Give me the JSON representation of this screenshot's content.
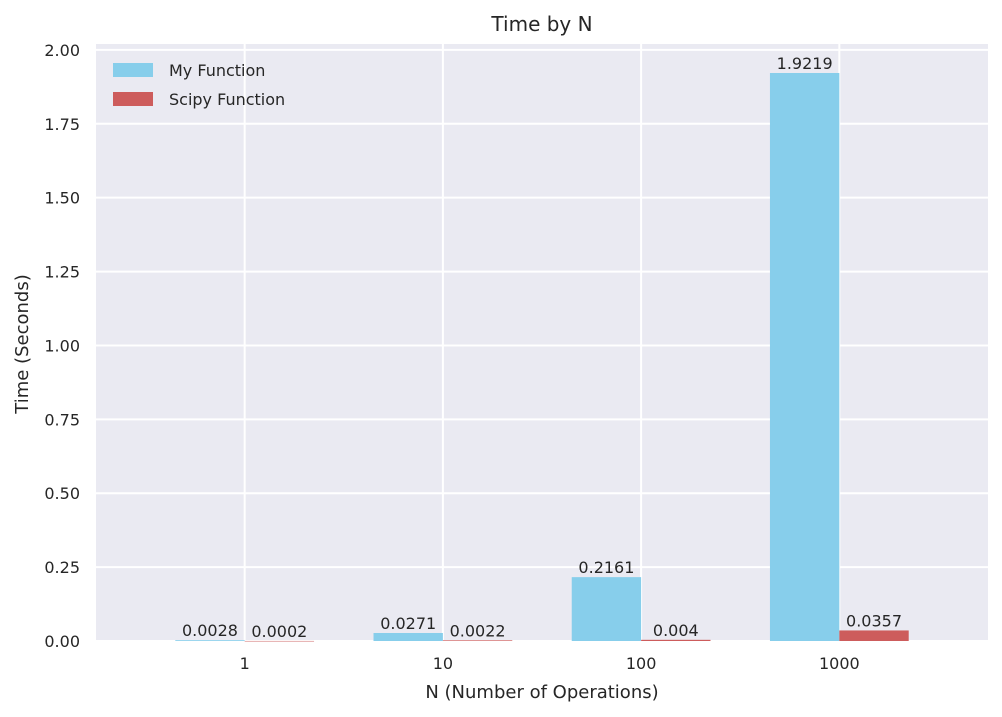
{
  "chart_data": {
    "type": "bar",
    "title": "Time by N",
    "xlabel": "N (Number of Operations)",
    "ylabel": "Time (Seconds)",
    "categories": [
      "1",
      "10",
      "100",
      "1000"
    ],
    "series": [
      {
        "name": "My Function",
        "color": "#87ceeb",
        "values": [
          0.0028,
          0.0271,
          0.2161,
          1.9219
        ],
        "labels": [
          "0.0028",
          "0.0271",
          "0.2161",
          "1.9219"
        ]
      },
      {
        "name": "Scipy Function",
        "color": "#cd5c5c",
        "values": [
          0.0002,
          0.0022,
          0.004,
          0.0357
        ],
        "labels": [
          "0.0002",
          "0.0022",
          "0.004",
          "0.0357"
        ]
      }
    ],
    "ylim": [
      0,
      2.02
    ],
    "yticks": [
      0.0,
      0.25,
      0.5,
      0.75,
      1.0,
      1.25,
      1.5,
      1.75,
      2.0
    ],
    "ytick_labels": [
      "0.00",
      "0.25",
      "0.50",
      "0.75",
      "1.00",
      "1.25",
      "1.50",
      "1.75",
      "2.00"
    ],
    "grid": true,
    "legend_position": "top-left",
    "plot_background": "#eaeaf2",
    "grid_color": "#ffffff"
  }
}
